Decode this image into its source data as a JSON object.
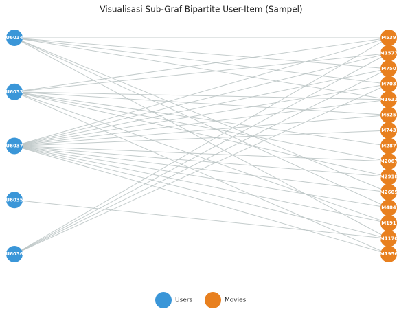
{
  "title": "Visualisasi Sub-Graf Bipartite User-Item (Sampel)",
  "users": [
    {
      "label": "U6034",
      "links": [
        "M539",
        "M750",
        "M703",
        "M1633",
        "M2605",
        "M484",
        "M1170"
      ]
    },
    {
      "label": "U6033",
      "links": [
        "M539",
        "M1577",
        "M1633",
        "M525",
        "M287",
        "M2067",
        "M2918",
        "M191",
        "M1956"
      ]
    },
    {
      "label": "U6037",
      "links": [
        "M539",
        "M1577",
        "M750",
        "M703",
        "M1633",
        "M525",
        "M743",
        "M287",
        "M2067",
        "M2918",
        "M2605",
        "M484",
        "M191",
        "M1170",
        "M1956"
      ]
    },
    {
      "label": "U6035",
      "links": [
        "M1170"
      ]
    },
    {
      "label": "U6036",
      "links": [
        "M539",
        "M1577",
        "M750",
        "M703"
      ]
    }
  ],
  "movies": [
    "M539",
    "M1577",
    "M750",
    "M703",
    "M1633",
    "M525",
    "M743",
    "M287",
    "M2067",
    "M2918",
    "M2605",
    "M484",
    "M191",
    "M1170",
    "M1956"
  ],
  "legend": {
    "users": "Users",
    "movies": "Movies"
  },
  "colors": {
    "users": "#3a96d8",
    "movies": "#e8801f"
  }
}
